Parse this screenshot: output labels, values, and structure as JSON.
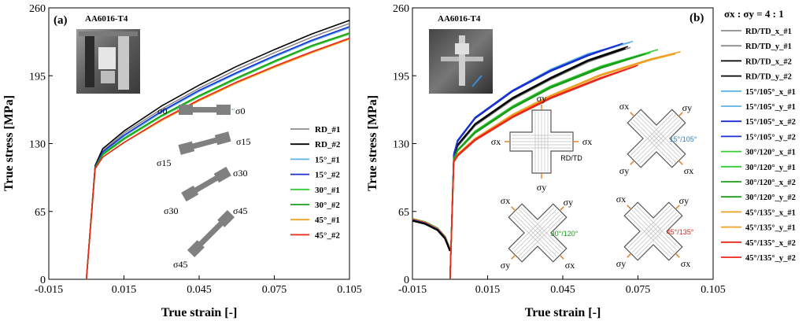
{
  "chart_data": [
    {
      "type": "line",
      "panel_label": "(a)",
      "photo_label": "AA6016-T4",
      "xlabel": "True strain [-]",
      "ylabel": "True stress [MPa]",
      "xlim": [
        -0.015,
        0.105
      ],
      "ylim": [
        0,
        260
      ],
      "xticks": [
        "-0.015",
        "0.015",
        "0.045",
        "0.075",
        "0.105"
      ],
      "yticks": [
        "0",
        "65",
        "130",
        "195",
        "260"
      ],
      "legend_position": "right",
      "specimen_labels": [
        "σ0",
        "σ0",
        "σ15",
        "σ15",
        "σ30",
        "σ30",
        "σ45",
        "σ45"
      ],
      "series": [
        {
          "name": "RD_#1",
          "color": "#8c8c8c",
          "values": [
            [
              0.0,
              0
            ],
            [
              0.0035,
              108
            ],
            [
              0.0065,
              123
            ],
            [
              0.015,
              140
            ],
            [
              0.03,
              163
            ],
            [
              0.045,
              183
            ],
            [
              0.06,
              201
            ],
            [
              0.075,
              217
            ],
            [
              0.09,
              232
            ],
            [
              0.105,
              245
            ]
          ]
        },
        {
          "name": "RD_#2",
          "color": "#000000",
          "values": [
            [
              0.0,
              0
            ],
            [
              0.0035,
              109
            ],
            [
              0.0065,
              125
            ],
            [
              0.015,
              142
            ],
            [
              0.03,
              166
            ],
            [
              0.045,
              186
            ],
            [
              0.06,
              204
            ],
            [
              0.075,
              220
            ],
            [
              0.09,
              235
            ],
            [
              0.105,
              248
            ]
          ]
        },
        {
          "name": "15°_#1",
          "color": "#5ab4e6",
          "values": [
            [
              0.0,
              0
            ],
            [
              0.0035,
              107
            ],
            [
              0.0065,
              121
            ],
            [
              0.015,
              137
            ],
            [
              0.03,
              160
            ],
            [
              0.045,
              180
            ],
            [
              0.06,
              197
            ],
            [
              0.075,
              213
            ],
            [
              0.09,
              228
            ],
            [
              0.105,
              241
            ]
          ]
        },
        {
          "name": "15°_#2",
          "color": "#1a2fd1",
          "values": [
            [
              0.0,
              0
            ],
            [
              0.0035,
              108
            ],
            [
              0.0065,
              122
            ],
            [
              0.015,
              138
            ],
            [
              0.03,
              161
            ],
            [
              0.045,
              181
            ],
            [
              0.06,
              198
            ],
            [
              0.075,
              214
            ],
            [
              0.09,
              229
            ],
            [
              0.105,
              242
            ]
          ]
        },
        {
          "name": "30°_#1",
          "color": "#33cc33",
          "values": [
            [
              0.0,
              0
            ],
            [
              0.0035,
              106
            ],
            [
              0.0065,
              119
            ],
            [
              0.015,
              134
            ],
            [
              0.03,
              156
            ],
            [
              0.045,
              175
            ],
            [
              0.06,
              192
            ],
            [
              0.075,
              208
            ],
            [
              0.09,
              223
            ],
            [
              0.105,
              235
            ]
          ]
        },
        {
          "name": "30°_#2",
          "color": "#1a9e1a",
          "values": [
            [
              0.0,
              0
            ],
            [
              0.0035,
              107
            ],
            [
              0.0065,
              120
            ],
            [
              0.015,
              135
            ],
            [
              0.03,
              157
            ],
            [
              0.045,
              176
            ],
            [
              0.06,
              193
            ],
            [
              0.075,
              209
            ],
            [
              0.09,
              224
            ],
            [
              0.105,
              236
            ]
          ]
        },
        {
          "name": "45°_#1",
          "color": "#f0a020",
          "values": [
            [
              0.0,
              0
            ],
            [
              0.0035,
              106
            ],
            [
              0.0065,
              117
            ],
            [
              0.015,
              131
            ],
            [
              0.03,
              152
            ],
            [
              0.045,
              171
            ],
            [
              0.06,
              188
            ],
            [
              0.075,
              203
            ],
            [
              0.09,
              217
            ],
            [
              0.105,
              230
            ]
          ]
        },
        {
          "name": "45°_#2",
          "color": "#e8261a",
          "values": [
            [
              0.0,
              0
            ],
            [
              0.0035,
              106
            ],
            [
              0.0065,
              117
            ],
            [
              0.015,
              131
            ],
            [
              0.03,
              153
            ],
            [
              0.045,
              172
            ],
            [
              0.06,
              189
            ],
            [
              0.075,
              204
            ],
            [
              0.09,
              218
            ],
            [
              0.105,
              231
            ]
          ]
        }
      ]
    },
    {
      "type": "line",
      "panel_label": "(b)",
      "photo_label": "AA6016-T4",
      "ratio_title": "σx : σy = 4 : 1",
      "xlabel": "True strain [-]",
      "ylabel": "True stress [MPa]",
      "xlim": [
        -0.015,
        0.105
      ],
      "ylim": [
        0,
        260
      ],
      "xticks": [
        "-0.015",
        "0.015",
        "0.045",
        "0.075",
        "0.105"
      ],
      "yticks": [
        "0",
        "65",
        "130",
        "195",
        "260"
      ],
      "legend_position": "right, outside",
      "cruciform_labels": [
        {
          "sx": "σx",
          "sy": "σy",
          "name": "RD/TD",
          "name_color": "#000000"
        },
        {
          "sx": "σx",
          "sy": "σy",
          "name": "15°/105°",
          "name_color": "#2a7fc4"
        },
        {
          "sx": "σx",
          "sy": "σy",
          "name": "30°/120°",
          "name_color": "#1f9a1f"
        },
        {
          "sx": "σx",
          "sy": "σy",
          "name": "45°/135°",
          "name_color": "#d4261a"
        }
      ],
      "series": [
        {
          "name": "RD/TD_x_#1",
          "color": "#8c8c8c",
          "values": [
            [
              0.0,
              0
            ],
            [
              0.0015,
              118
            ],
            [
              0.003,
              128
            ],
            [
              0.01,
              148
            ],
            [
              0.025,
              173
            ],
            [
              0.04,
              192
            ],
            [
              0.055,
              209
            ],
            [
              0.07,
              222
            ]
          ]
        },
        {
          "name": "RD/TD_y_#1",
          "color": "#8c8c8c",
          "values": [
            [
              0.0,
              0
            ],
            [
              0.0015,
              117
            ],
            [
              0.003,
              127
            ],
            [
              0.01,
              147
            ],
            [
              0.025,
              172
            ],
            [
              0.04,
              191
            ],
            [
              0.055,
              208
            ],
            [
              0.072,
              222
            ]
          ]
        },
        {
          "name": "RD/TD_x_#2",
          "color": "#000000",
          "values": [
            [
              0.0,
              0
            ],
            [
              0.0015,
              118
            ],
            [
              0.003,
              129
            ],
            [
              0.01,
              149
            ],
            [
              0.025,
              174
            ],
            [
              0.04,
              193
            ],
            [
              0.055,
              210
            ],
            [
              0.071,
              223
            ]
          ]
        },
        {
          "name": "RD/TD_y_#2",
          "color": "#000000",
          "values": [
            [
              0.0,
              0
            ],
            [
              0.0015,
              117
            ],
            [
              0.003,
              128
            ],
            [
              0.01,
              148
            ],
            [
              0.025,
              173
            ],
            [
              0.04,
              192
            ],
            [
              0.055,
              209
            ],
            [
              0.07,
              221
            ]
          ]
        },
        {
          "name": "15°/105°_x_#1",
          "color": "#5ab4e6",
          "values": [
            [
              0.0,
              0
            ],
            [
              0.0015,
              120
            ],
            [
              0.003,
              133
            ],
            [
              0.01,
              155
            ],
            [
              0.025,
              181
            ],
            [
              0.04,
              201
            ],
            [
              0.055,
              216
            ],
            [
              0.073,
              228
            ]
          ]
        },
        {
          "name": "15°/105°_y_#1",
          "color": "#5ab4e6",
          "values": [
            [
              0.0,
              0
            ],
            [
              0.0015,
              119
            ],
            [
              0.003,
              132
            ],
            [
              0.01,
              154
            ],
            [
              0.025,
              180
            ],
            [
              0.04,
              200
            ],
            [
              0.055,
              215
            ],
            [
              0.072,
              227
            ]
          ]
        },
        {
          "name": "15°/105°_x_#2",
          "color": "#1a2fd1",
          "values": [
            [
              0.0,
              0
            ],
            [
              0.0015,
              120
            ],
            [
              0.003,
              133
            ],
            [
              0.01,
              155
            ],
            [
              0.025,
              181
            ],
            [
              0.04,
              200
            ],
            [
              0.055,
              215
            ],
            [
              0.069,
              226
            ]
          ]
        },
        {
          "name": "15°/105°_y_#2",
          "color": "#1a2fd1",
          "values": [
            [
              0.0,
              0
            ],
            [
              0.0015,
              119
            ],
            [
              0.003,
              132
            ],
            [
              0.01,
              154
            ],
            [
              0.025,
              180
            ],
            [
              0.04,
              199
            ],
            [
              0.055,
              214
            ],
            [
              0.068,
              225
            ]
          ]
        },
        {
          "name": "30°/120°_x_#1",
          "color": "#33cc33",
          "values": [
            [
              0.0,
              0
            ],
            [
              0.0015,
              116
            ],
            [
              0.003,
              124
            ],
            [
              0.01,
              142
            ],
            [
              0.025,
              166
            ],
            [
              0.04,
              185
            ],
            [
              0.06,
              204
            ],
            [
              0.08,
              218
            ],
            [
              0.083,
              220
            ]
          ]
        },
        {
          "name": "30°/120°_y_#1",
          "color": "#33cc33",
          "values": [
            [
              0.0,
              0
            ],
            [
              0.0015,
              115
            ],
            [
              0.003,
              123
            ],
            [
              0.01,
              141
            ],
            [
              0.025,
              165
            ],
            [
              0.04,
              184
            ],
            [
              0.06,
              203
            ],
            [
              0.08,
              217
            ]
          ]
        },
        {
          "name": "30°/120°_x_#2",
          "color": "#1a9e1a",
          "values": [
            [
              0.0,
              0
            ],
            [
              0.0015,
              116
            ],
            [
              0.003,
              124
            ],
            [
              0.01,
              141
            ],
            [
              0.025,
              165
            ],
            [
              0.04,
              184
            ],
            [
              0.06,
              203
            ],
            [
              0.078,
              216
            ]
          ]
        },
        {
          "name": "30°/120°_y_#2",
          "color": "#1a9e1a",
          "values": [
            [
              0.0,
              0
            ],
            [
              0.0015,
              115
            ],
            [
              0.003,
              123
            ],
            [
              0.01,
              140
            ],
            [
              0.025,
              164
            ],
            [
              0.04,
              183
            ],
            [
              0.06,
              202
            ],
            [
              0.077,
              215
            ]
          ]
        },
        {
          "name": "45°/135°_x_#1",
          "color": "#f0a020",
          "values": [
            [
              0.0,
              0
            ],
            [
              0.0015,
              113
            ],
            [
              0.003,
              120
            ],
            [
              0.01,
              135
            ],
            [
              0.025,
              158
            ],
            [
              0.04,
              176
            ],
            [
              0.06,
              196
            ],
            [
              0.08,
              211
            ],
            [
              0.092,
              218
            ]
          ]
        },
        {
          "name": "45°/135°_y_#1",
          "color": "#f0a020",
          "values": [
            [
              0.0,
              0
            ],
            [
              0.0015,
              112
            ],
            [
              0.003,
              119
            ],
            [
              0.01,
              134
            ],
            [
              0.025,
              157
            ],
            [
              0.04,
              175
            ],
            [
              0.06,
              195
            ],
            [
              0.08,
              210
            ],
            [
              0.09,
              216
            ]
          ]
        },
        {
          "name": "45°/135°_x_#2",
          "color": "#e8261a",
          "values": [
            [
              0.0,
              0
            ],
            [
              0.0015,
              113
            ],
            [
              0.003,
              119
            ],
            [
              0.01,
              134
            ],
            [
              0.025,
              156
            ],
            [
              0.04,
              174
            ],
            [
              0.06,
              193
            ],
            [
              0.075,
              205
            ]
          ]
        },
        {
          "name": "45°/135°_y_#2",
          "color": "#e8261a",
          "values": [
            [
              0.0,
              0
            ],
            [
              0.0015,
              112
            ],
            [
              0.003,
              118
            ],
            [
              0.01,
              133
            ],
            [
              0.025,
              155
            ],
            [
              0.04,
              173
            ],
            [
              0.06,
              192
            ],
            [
              0.074,
              204
            ]
          ]
        }
      ],
      "compression_branch": {
        "note": "small negative-strain unloading segment",
        "values": [
          [
            -0.015,
            57
          ],
          [
            -0.01,
            54
          ],
          [
            -0.005,
            48
          ],
          [
            -0.002,
            40
          ],
          [
            0.0,
            28
          ]
        ]
      }
    }
  ]
}
